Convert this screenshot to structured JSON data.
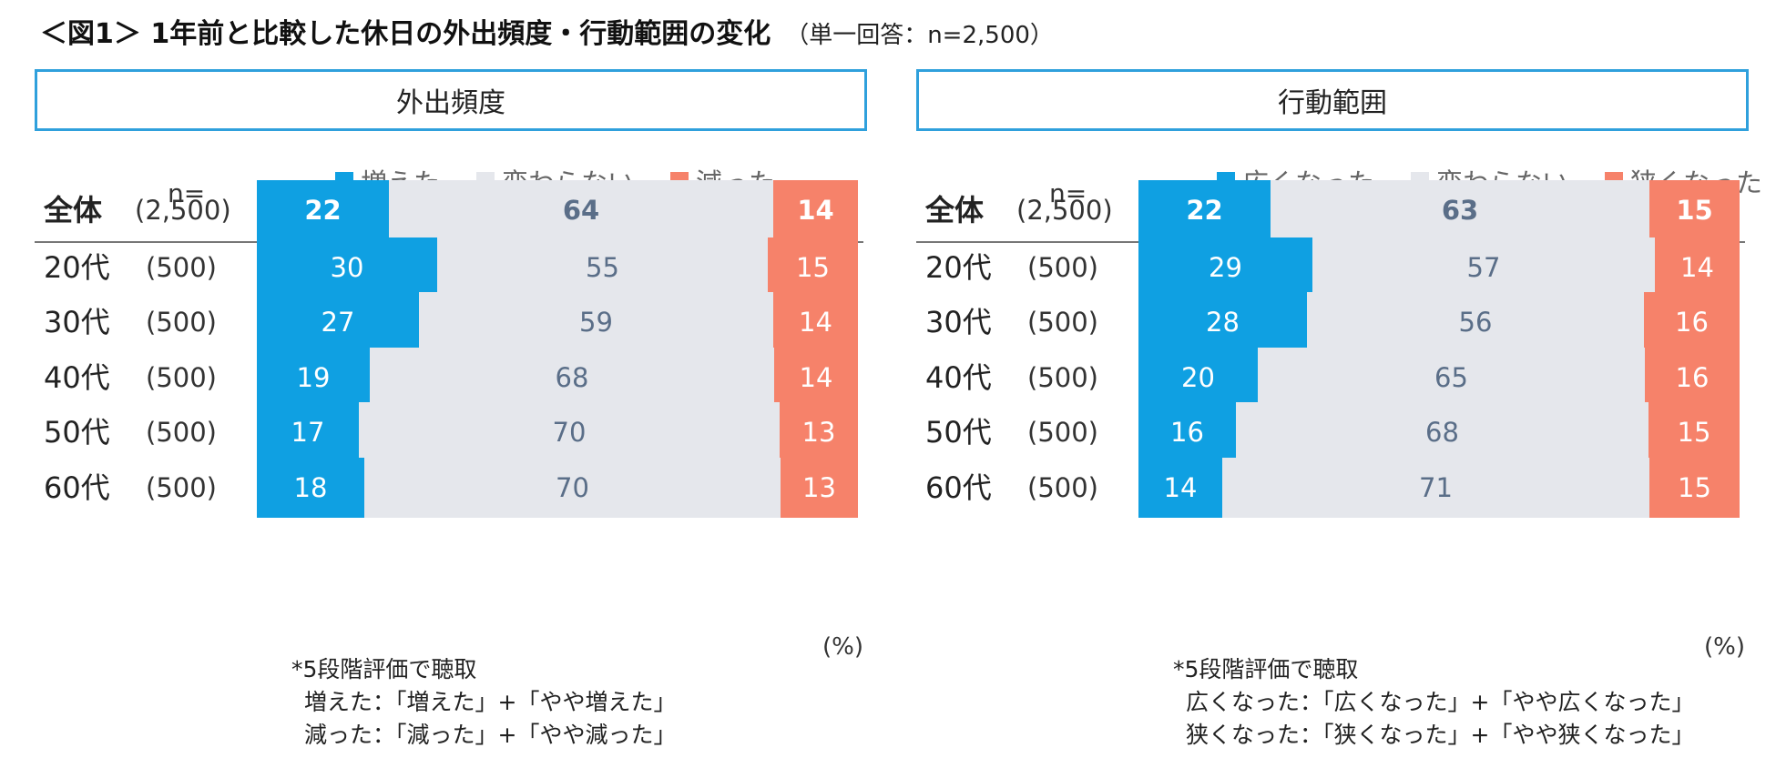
{
  "title": {
    "main": "＜図1＞ 1年前と比較した休日の外出頻度・行動範囲の変化",
    "sub": "（単一回答：n=2,500）"
  },
  "colors": {
    "increase": "#0fa0e2",
    "same": "#e5e7ec",
    "decrease": "#f6826a",
    "header_border": "#2fa0dc"
  },
  "unit": "(%)",
  "n_label": "n=",
  "panels": [
    {
      "header": "外出頻度",
      "legend": [
        "増えた",
        "変わらない",
        "減った"
      ],
      "notes": [
        "*5段階評価で聴取",
        "増えた：「増えた」+「やや増えた」",
        "減った：「減った」+「やや減った」"
      ]
    },
    {
      "header": "行動範囲",
      "legend": [
        "広くなった",
        "変わらない",
        "狭くなった"
      ],
      "notes": [
        "*5段階評価で聴取",
        "広くなった：「広くなった」+「やや広くなった」",
        "狭くなった：「狭くなった」+「やや狭くなった」"
      ]
    }
  ],
  "chart_data": [
    {
      "type": "bar",
      "stacked": true,
      "orientation": "horizontal",
      "title": "外出頻度",
      "categories": [
        "全体",
        "20代",
        "30代",
        "40代",
        "50代",
        "60代"
      ],
      "sample_sizes": [
        "(2,500)",
        "(500)",
        "(500)",
        "(500)",
        "(500)",
        "(500)"
      ],
      "series": [
        {
          "name": "増えた",
          "values": [
            22,
            30,
            27,
            19,
            17,
            18
          ]
        },
        {
          "name": "変わらない",
          "values": [
            64,
            55,
            59,
            68,
            70,
            70
          ]
        },
        {
          "name": "減った",
          "values": [
            14,
            15,
            14,
            14,
            13,
            13
          ]
        }
      ],
      "unit": "(%)",
      "legend": "top"
    },
    {
      "type": "bar",
      "stacked": true,
      "orientation": "horizontal",
      "title": "行動範囲",
      "categories": [
        "全体",
        "20代",
        "30代",
        "40代",
        "50代",
        "60代"
      ],
      "sample_sizes": [
        "(2,500)",
        "(500)",
        "(500)",
        "(500)",
        "(500)",
        "(500)"
      ],
      "series": [
        {
          "name": "広くなった",
          "values": [
            22,
            29,
            28,
            20,
            16,
            14
          ]
        },
        {
          "name": "変わらない",
          "values": [
            63,
            57,
            56,
            65,
            68,
            71
          ]
        },
        {
          "name": "狭くなった",
          "values": [
            15,
            14,
            16,
            16,
            15,
            15
          ]
        }
      ],
      "unit": "(%)",
      "legend": "top"
    }
  ]
}
